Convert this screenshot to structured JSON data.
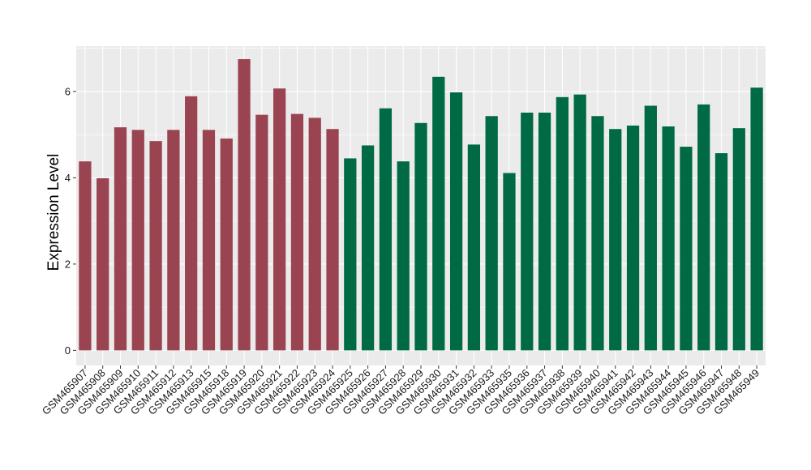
{
  "chart_data": {
    "type": "bar",
    "title": "",
    "xlabel": "",
    "ylabel": "Expression Level",
    "ylim": [
      -0.35,
      7.05
    ],
    "yticks": [
      0,
      2,
      4,
      6
    ],
    "grid": true,
    "legend": "none",
    "colors": {
      "panel": "#ebebeb",
      "grid": "#ffffff",
      "group_a": "#9b4451",
      "group_b": "#006a45"
    },
    "bars": [
      {
        "label": "GSM465907",
        "value": 4.38,
        "group": "a"
      },
      {
        "label": "GSM465908",
        "value": 3.99,
        "group": "a"
      },
      {
        "label": "GSM465909",
        "value": 5.17,
        "group": "a"
      },
      {
        "label": "GSM465910",
        "value": 5.11,
        "group": "a"
      },
      {
        "label": "GSM465911",
        "value": 4.85,
        "group": "a"
      },
      {
        "label": "GSM465912",
        "value": 5.11,
        "group": "a"
      },
      {
        "label": "GSM465913",
        "value": 5.89,
        "group": "a"
      },
      {
        "label": "GSM465915",
        "value": 5.11,
        "group": "a"
      },
      {
        "label": "GSM465918",
        "value": 4.91,
        "group": "a"
      },
      {
        "label": "GSM465919",
        "value": 6.75,
        "group": "a"
      },
      {
        "label": "GSM465920",
        "value": 5.46,
        "group": "a"
      },
      {
        "label": "GSM465921",
        "value": 6.07,
        "group": "a"
      },
      {
        "label": "GSM465922",
        "value": 5.48,
        "group": "a"
      },
      {
        "label": "GSM465923",
        "value": 5.39,
        "group": "a"
      },
      {
        "label": "GSM465924",
        "value": 5.13,
        "group": "a"
      },
      {
        "label": "GSM465925",
        "value": 4.45,
        "group": "b"
      },
      {
        "label": "GSM465926",
        "value": 4.75,
        "group": "b"
      },
      {
        "label": "GSM465927",
        "value": 5.61,
        "group": "b"
      },
      {
        "label": "GSM465928",
        "value": 4.38,
        "group": "b"
      },
      {
        "label": "GSM465929",
        "value": 5.27,
        "group": "b"
      },
      {
        "label": "GSM465930",
        "value": 6.34,
        "group": "b"
      },
      {
        "label": "GSM465931",
        "value": 5.98,
        "group": "b"
      },
      {
        "label": "GSM465932",
        "value": 4.77,
        "group": "b"
      },
      {
        "label": "GSM465933",
        "value": 5.43,
        "group": "b"
      },
      {
        "label": "GSM465935",
        "value": 4.11,
        "group": "b"
      },
      {
        "label": "GSM465936",
        "value": 5.51,
        "group": "b"
      },
      {
        "label": "GSM465937",
        "value": 5.51,
        "group": "b"
      },
      {
        "label": "GSM465938",
        "value": 5.87,
        "group": "b"
      },
      {
        "label": "GSM465939",
        "value": 5.93,
        "group": "b"
      },
      {
        "label": "GSM465940",
        "value": 5.43,
        "group": "b"
      },
      {
        "label": "GSM465941",
        "value": 5.13,
        "group": "b"
      },
      {
        "label": "GSM465942",
        "value": 5.21,
        "group": "b"
      },
      {
        "label": "GSM465943",
        "value": 5.67,
        "group": "b"
      },
      {
        "label": "GSM465944",
        "value": 5.19,
        "group": "b"
      },
      {
        "label": "GSM465945",
        "value": 4.72,
        "group": "b"
      },
      {
        "label": "GSM465946",
        "value": 5.7,
        "group": "b"
      },
      {
        "label": "GSM465947",
        "value": 4.57,
        "group": "b"
      },
      {
        "label": "GSM465948",
        "value": 5.15,
        "group": "b"
      },
      {
        "label": "GSM465949",
        "value": 6.09,
        "group": "b"
      }
    ]
  }
}
